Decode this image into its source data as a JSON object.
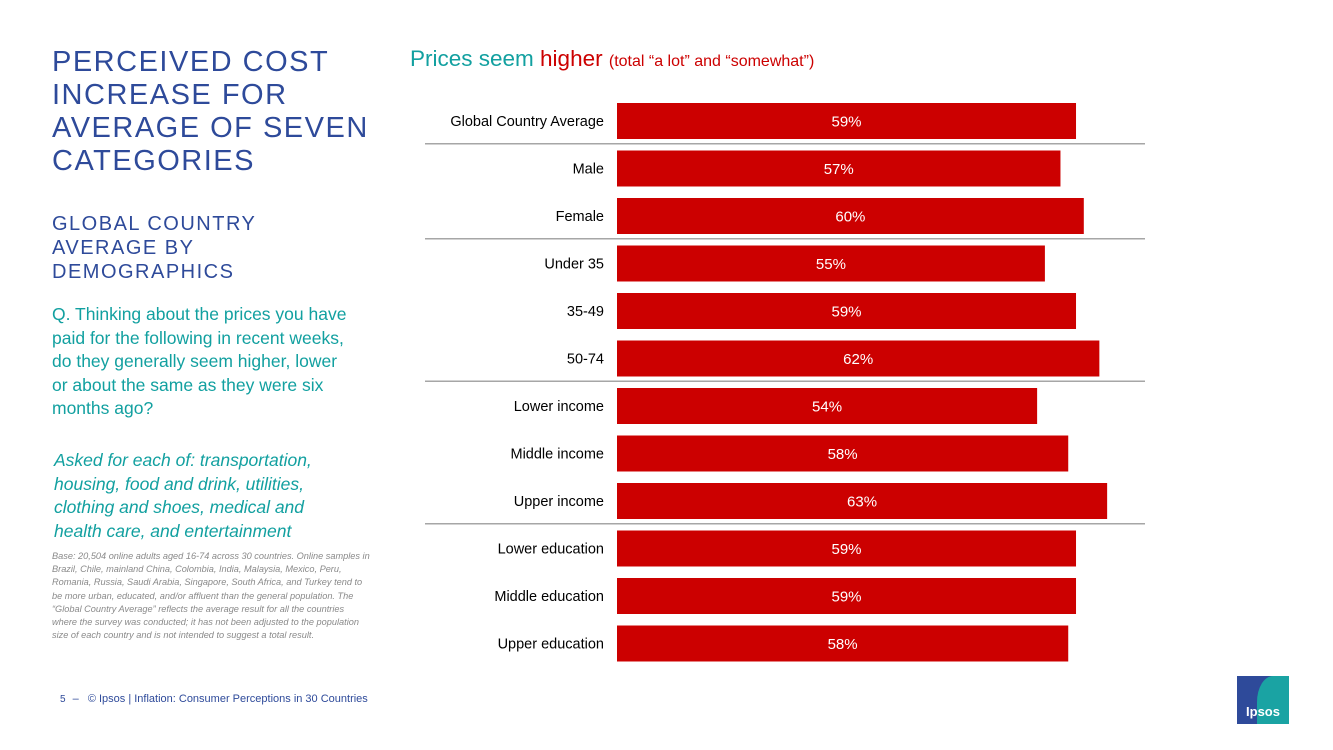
{
  "slide": {
    "title": "PERCEIVED COST INCREASE FOR AVERAGE OF SEVEN CATEGORIES",
    "subtitle": "GLOBAL COUNTRY AVERAGE BY DEMOGRAPHICS",
    "question": "Q. Thinking about the prices you have paid for the following in recent weeks, do they generally seem higher, lower or about the same as they were six months ago?",
    "asked": "Asked for each of: transportation, housing, food and drink, utilities, clothing and shoes, medical and health care, and entertainment",
    "base_note": "Base: 20,504 online adults aged 16-74 across 30 countries. Online samples in Brazil, Chile, mainland China, Colombia, India, Malaysia, Mexico, Peru, Romania, Russia, Saudi Arabia, Singapore, South Africa, and Turkey tend to be more urban, educated, and/or affluent than the general population. The “Global Country Average” reflects the average result for all the countries where the survey was conducted; it has not been adjusted to the population size of each country and is not intended to suggest a total result.",
    "footer": "© Ipsos | Inflation: Consumer Perceptions in 30 Countries",
    "page_number": "5",
    "page_dash": "–",
    "logo_text": "Ipsos"
  },
  "chart_data": {
    "type": "bar",
    "orientation": "horizontal",
    "title_prefix": "Prices seem ",
    "title_highlight": "higher",
    "title_suffix": "(total “a lot” and “somewhat”)",
    "categories": [
      "Global Country Average",
      "Male",
      "Female",
      "Under 35",
      "35-49",
      "50-74",
      "Lower income",
      "Middle income",
      "Upper income",
      "Lower education",
      "Middle education",
      "Upper education"
    ],
    "values": [
      59,
      57,
      60,
      55,
      59,
      62,
      54,
      58,
      63,
      59,
      59,
      58
    ],
    "value_labels": [
      "59%",
      "57%",
      "60%",
      "55%",
      "59%",
      "62%",
      "54%",
      "58%",
      "63%",
      "59%",
      "59%",
      "58%"
    ],
    "group_separators_after": [
      0,
      2,
      5,
      8
    ],
    "xlim": [
      0,
      65
    ],
    "bar_color": "#cc0000",
    "label_color": "#ffffff",
    "separator_color": "#a6a6a6"
  }
}
